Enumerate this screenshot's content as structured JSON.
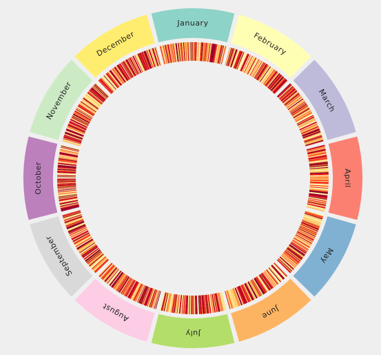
{
  "chart_data": {
    "type": "radial-heatmap",
    "months": [
      {
        "label": "January",
        "color": "#8dd3c7",
        "days": 31
      },
      {
        "label": "February",
        "color": "#ffffb3",
        "days": 28
      },
      {
        "label": "March",
        "color": "#bebada",
        "days": 31
      },
      {
        "label": "April",
        "color": "#fb8072",
        "days": 30
      },
      {
        "label": "May",
        "color": "#80b1d3",
        "days": 31
      },
      {
        "label": "June",
        "color": "#fdb462",
        "days": 30
      },
      {
        "label": "July",
        "color": "#b3de69",
        "days": 31
      },
      {
        "label": "August",
        "color": "#fccde5",
        "days": 31
      },
      {
        "label": "September",
        "color": "#d9d9d9",
        "days": 30
      },
      {
        "label": "October",
        "color": "#bc80bd",
        "days": 31
      },
      {
        "label": "November",
        "color": "#ccebc5",
        "days": 30
      },
      {
        "label": "December",
        "color": "#ffed6f",
        "days": 31
      }
    ],
    "heat_colors": [
      "#ffffcc",
      "#ffeda0",
      "#fed976",
      "#feb24c",
      "#fd8d3c",
      "#fc4e2a",
      "#e31a1c",
      "#bd0026",
      "#800026"
    ]
  }
}
